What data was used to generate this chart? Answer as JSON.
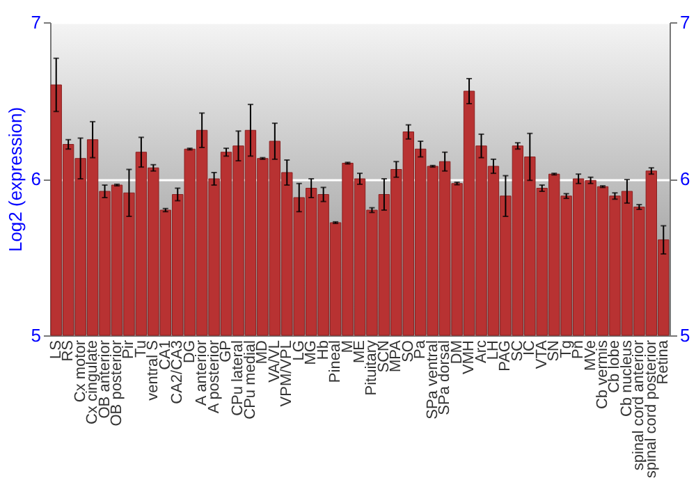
{
  "chart_data": {
    "type": "bar",
    "ylabel": "Log2 (expression)",
    "categories": [
      "LS",
      "RS",
      "Cx motor",
      "Cx cingulate",
      "OB anterior",
      "OB posterior",
      "Pir",
      "Tu",
      "ventral S",
      "CA1",
      "CA2/CA3",
      "DG",
      "A anterior",
      "A posterior",
      "GP",
      "CPu lateral",
      "CPu medial",
      "MD",
      "VA/VL",
      "VPM/VPL",
      "LG",
      "MG",
      "Hb",
      "Pineal",
      "M",
      "ME",
      "Pituitary",
      "SCN",
      "MPA",
      "SO",
      "Pa",
      "SPa ventral",
      "SPa dorsal",
      "DM",
      "VMH",
      "Arc",
      "LH",
      "PAG",
      "SC",
      "IC",
      "VTA",
      "SN",
      "Tg",
      "Pn",
      "MVe",
      "Cb vermis",
      "Cb lobe",
      "Cb nucleus",
      "spinal cord anterior",
      "spinal cord posterior",
      "Retina"
    ],
    "values": [
      6.6,
      6.22,
      6.13,
      6.25,
      5.92,
      5.96,
      5.91,
      6.17,
      6.07,
      5.8,
      5.9,
      6.19,
      6.31,
      6.0,
      6.17,
      6.21,
      6.31,
      6.13,
      6.24,
      6.04,
      5.88,
      5.94,
      5.9,
      5.72,
      6.1,
      6.0,
      5.8,
      5.9,
      6.06,
      6.3,
      6.19,
      6.08,
      6.11,
      5.97,
      6.56,
      6.21,
      6.08,
      5.89,
      6.21,
      6.14,
      5.94,
      6.03,
      5.89,
      6.0,
      5.99,
      5.95,
      5.89,
      5.92,
      5.82,
      6.05,
      5.61
    ],
    "errors": [
      0.17,
      0.03,
      0.13,
      0.115,
      0.04,
      0.005,
      0.15,
      0.095,
      0.02,
      0.01,
      0.04,
      0.005,
      0.11,
      0.04,
      0.025,
      0.095,
      0.165,
      0.005,
      0.115,
      0.08,
      0.09,
      0.06,
      0.045,
      0.005,
      0.005,
      0.035,
      0.015,
      0.1,
      0.05,
      0.045,
      0.05,
      0.005,
      0.06,
      0.008,
      0.08,
      0.075,
      0.045,
      0.13,
      0.02,
      0.15,
      0.02,
      0.005,
      0.015,
      0.03,
      0.02,
      0.005,
      0.02,
      0.075,
      0.015,
      0.02,
      0.09
    ],
    "color": "#b83232",
    "ylim": [
      5,
      7
    ],
    "yticks": [
      5,
      6,
      7
    ],
    "y2lim": [
      5,
      7
    ],
    "y2ticks": [
      5,
      6,
      7
    ],
    "grid": "y"
  }
}
